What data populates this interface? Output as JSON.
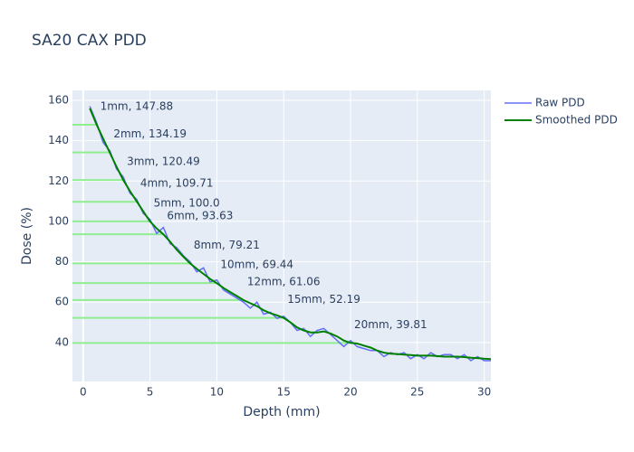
{
  "chart_data": {
    "type": "line",
    "title": "SA20 CAX PDD",
    "x_label": "Depth (mm)",
    "y_label": "Dose (%)",
    "x": [
      0.5,
      1,
      1.5,
      2,
      2.5,
      3,
      3.5,
      4,
      4.5,
      5,
      5.5,
      6,
      6.5,
      7,
      7.5,
      8,
      8.5,
      9,
      9.5,
      10,
      10.5,
      11,
      11.5,
      12,
      12.5,
      13,
      13.5,
      14,
      14.5,
      15,
      15.5,
      16,
      16.5,
      17,
      17.5,
      18,
      18.5,
      19,
      19.5,
      20,
      20.5,
      21,
      21.5,
      22,
      22.5,
      23,
      23.5,
      24,
      24.5,
      25,
      25.5,
      26,
      26.5,
      27,
      27.5,
      28,
      28.5,
      29,
      29.5,
      30,
      30.5
    ],
    "series": [
      {
        "name": "Raw PDD",
        "color": "#636efa",
        "width": 1.5,
        "values": [
          157,
          149,
          139,
          135,
          126,
          122,
          114,
          111,
          104,
          101,
          94,
          97,
          89,
          87,
          83,
          80,
          75,
          77,
          70,
          71,
          66,
          64,
          62,
          60,
          57,
          60,
          54,
          55,
          52,
          53,
          50,
          46,
          47,
          43,
          46,
          47,
          44,
          41,
          38,
          41,
          38,
          37,
          36,
          36,
          33,
          35,
          34,
          35,
          32,
          34,
          32,
          35,
          33,
          34,
          34,
          32,
          34,
          31,
          33,
          31,
          31
        ]
      },
      {
        "name": "Smoothed PDD",
        "color": "#008000",
        "width": 2,
        "values": [
          156,
          148,
          141,
          134,
          127,
          120.5,
          115,
          110,
          105,
          100,
          96.5,
          93.6,
          90,
          86,
          82.5,
          79.2,
          76.5,
          74,
          71.5,
          69.4,
          67,
          65,
          63,
          61,
          59.5,
          58,
          56,
          54.5,
          53.5,
          52.2,
          50,
          47.5,
          46,
          45,
          45,
          45.5,
          44.5,
          43,
          41,
          39.8,
          39.5,
          38.5,
          37.5,
          36,
          35,
          34.5,
          34.3,
          34,
          33.8,
          33.5,
          33.5,
          33.5,
          33.3,
          33,
          33,
          33,
          32.8,
          32.5,
          32.3,
          32,
          31.8
        ]
      }
    ],
    "markers": [
      {
        "depth": 1,
        "dose": 147.88,
        "label": "1mm, 147.88"
      },
      {
        "depth": 2,
        "dose": 134.19,
        "label": "2mm, 134.19"
      },
      {
        "depth": 3,
        "dose": 120.49,
        "label": "3mm, 120.49"
      },
      {
        "depth": 4,
        "dose": 109.71,
        "label": "4mm, 109.71"
      },
      {
        "depth": 5,
        "dose": 100.0,
        "label": "5mm, 100.0"
      },
      {
        "depth": 6,
        "dose": 93.63,
        "label": "6mm, 93.63"
      },
      {
        "depth": 8,
        "dose": 79.21,
        "label": "8mm, 79.21"
      },
      {
        "depth": 10,
        "dose": 69.44,
        "label": "10mm, 69.44"
      },
      {
        "depth": 12,
        "dose": 61.06,
        "label": "12mm, 61.06"
      },
      {
        "depth": 15,
        "dose": 52.19,
        "label": "15mm, 52.19"
      },
      {
        "depth": 20,
        "dose": 39.81,
        "label": "20mm, 39.81"
      }
    ],
    "marker_color": "#90ee90",
    "xlim": [
      -0.8,
      30.5
    ],
    "xticks": [
      0,
      5,
      10,
      15,
      20,
      25,
      30
    ],
    "ylim": [
      20.7,
      164.9
    ],
    "yticks": [
      40,
      60,
      80,
      100,
      120,
      140,
      160
    ],
    "grid": true,
    "legend": "top-right"
  }
}
